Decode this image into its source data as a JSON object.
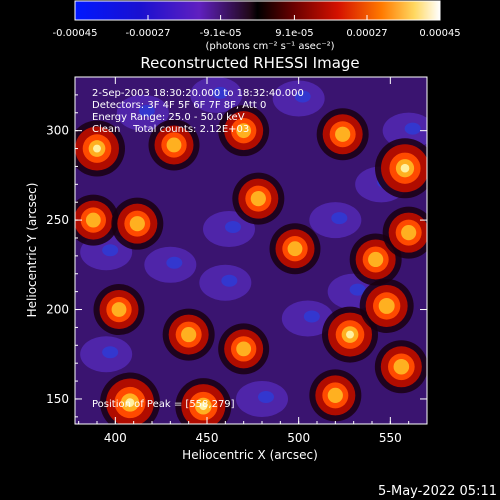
{
  "colorbar": {
    "ticks": [
      "-0.00045",
      "-0.00027",
      "-9.1e-05",
      "9.1e-05",
      "0.00027",
      "0.00045"
    ],
    "min": -0.00045,
    "max": 0.00045,
    "units_label": "(photons cm⁻² s⁻¹ asec⁻²)"
  },
  "title": "Reconstructed RHESSI Image",
  "annotations": {
    "time_range": "2-Sep-2003 18:30:20.000 to 18:32:40.000",
    "detectors": "Detectors: 3F 4F 5F 6F 7F 8F, Att 0",
    "energy_range": "Energy Range: 25.0 - 50.0 keV",
    "method_counts": "Clean    Total counts: 2.12E+03",
    "peak_position": "Position of Peak = [558,279]"
  },
  "footer_date": "5-May-2022 05:11",
  "chart_data": {
    "type": "heatmap",
    "title": "Reconstructed RHESSI Image",
    "xlabel": "Heliocentric X (arcsec)",
    "ylabel": "Heliocentric Y (arcsec)",
    "xlim": [
      378,
      570
    ],
    "ylim": [
      136,
      330
    ],
    "x_ticks": [
      400,
      450,
      500,
      550
    ],
    "y_ticks": [
      150,
      200,
      250,
      300
    ],
    "colormap": "rhessi hot-blue diverging",
    "value_range": [
      -0.00045,
      0.00045
    ],
    "peak": [
      558,
      279
    ],
    "hotspots": [
      {
        "x": 408,
        "y": 148,
        "level": 1.0
      },
      {
        "x": 448,
        "y": 146,
        "level": 0.8
      },
      {
        "x": 390,
        "y": 290,
        "level": 0.8
      },
      {
        "x": 388,
        "y": 250,
        "level": 0.55
      },
      {
        "x": 412,
        "y": 248,
        "level": 0.6
      },
      {
        "x": 432,
        "y": 292,
        "level": 0.55
      },
      {
        "x": 470,
        "y": 300,
        "level": 0.55
      },
      {
        "x": 478,
        "y": 262,
        "level": 0.6
      },
      {
        "x": 524,
        "y": 298,
        "level": 0.6
      },
      {
        "x": 528,
        "y": 186,
        "level": 0.8
      },
      {
        "x": 542,
        "y": 228,
        "level": 0.6
      },
      {
        "x": 558,
        "y": 279,
        "level": 1.0
      },
      {
        "x": 560,
        "y": 243,
        "level": 0.6
      },
      {
        "x": 548,
        "y": 202,
        "level": 0.7
      },
      {
        "x": 556,
        "y": 168,
        "level": 0.65
      },
      {
        "x": 520,
        "y": 152,
        "level": 0.6
      },
      {
        "x": 498,
        "y": 234,
        "level": 0.55
      },
      {
        "x": 440,
        "y": 186,
        "level": 0.6
      },
      {
        "x": 470,
        "y": 178,
        "level": 0.55
      },
      {
        "x": 402,
        "y": 200,
        "level": 0.55
      }
    ]
  }
}
